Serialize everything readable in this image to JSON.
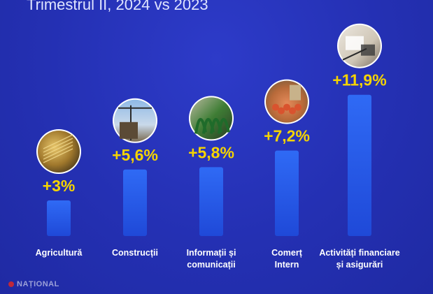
{
  "header": {
    "title": "Trimestrul II, 2024 vs 2023"
  },
  "chart_data": {
    "type": "bar",
    "title": "Trimestrul II, 2024 vs 2023",
    "categories": [
      [
        "Agricultură"
      ],
      [
        "Construcții"
      ],
      [
        "Informații și",
        "comunicații"
      ],
      [
        "Comerț",
        "Intern"
      ],
      [
        "Activități financiare",
        "și asigurări"
      ]
    ],
    "values": [
      3.0,
      5.6,
      5.8,
      7.2,
      11.9
    ],
    "value_labels": [
      "+3%",
      "+5,6%",
      "+5,8%",
      "+7,2%",
      "+11,9%"
    ],
    "icons": [
      "wheat-photo-icon",
      "construction-crane-photo-icon",
      "cables-photo-icon",
      "market-produce-photo-icon",
      "finance-documents-photo-icon"
    ],
    "ylim": [
      0,
      12
    ],
    "grid": false,
    "legend": "none",
    "colors": {
      "background": "#2430b3",
      "bar_top": "#2f6af5",
      "bar_bottom": "#1f49d8",
      "value_text": "#f6d400",
      "category_text": "#ffffff"
    }
  },
  "watermark": {
    "text": "NAȚIONAL"
  }
}
